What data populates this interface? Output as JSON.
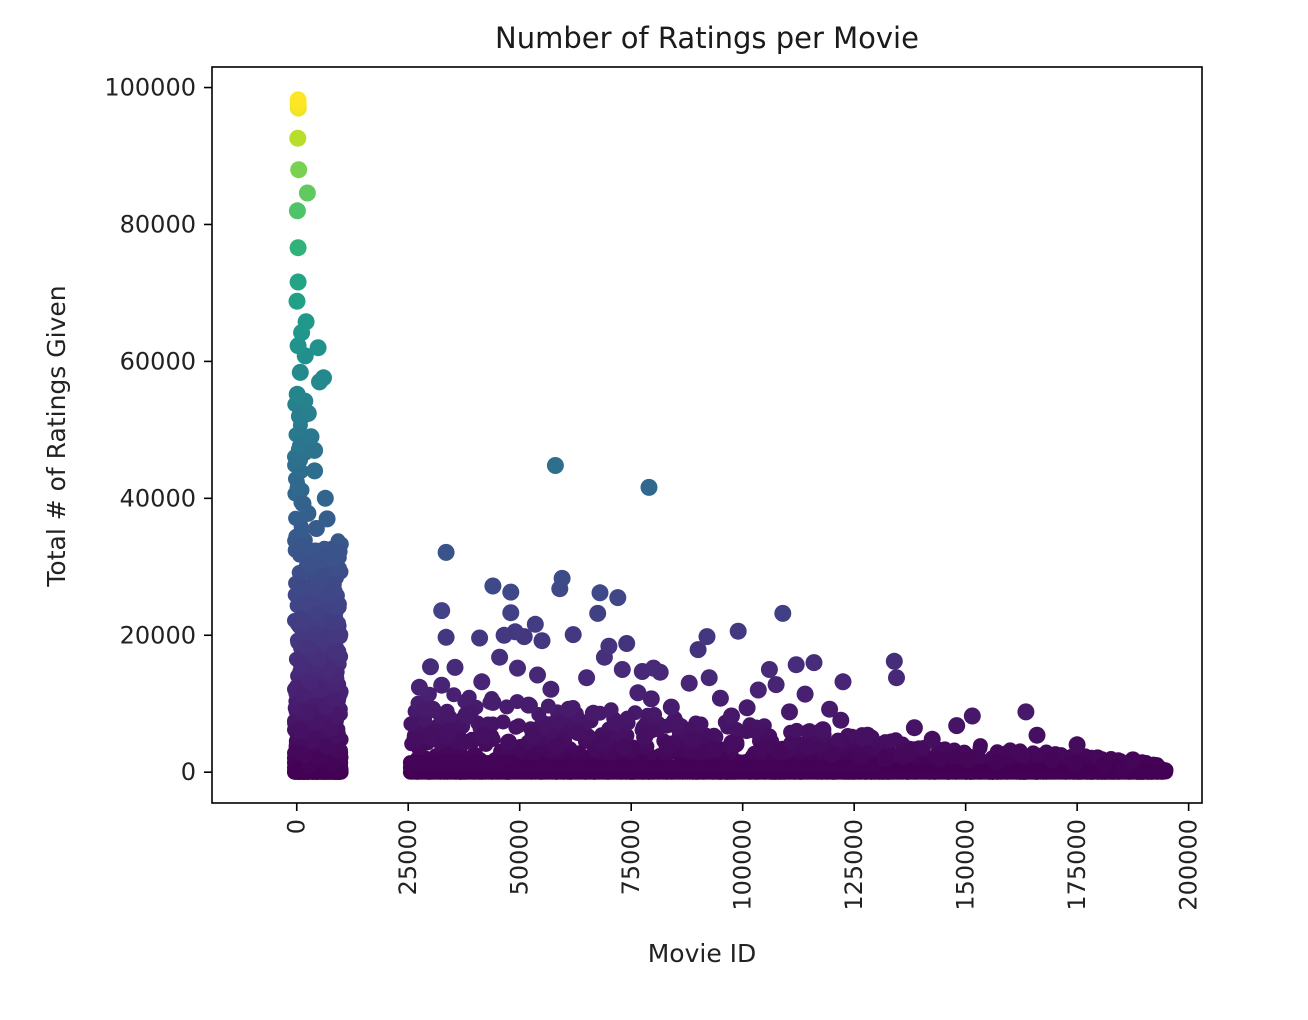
{
  "chart_data": {
    "type": "scatter",
    "title": "Number of Ratings per Movie",
    "xlabel": "Movie ID",
    "ylabel": "Total # of Ratings Given",
    "xlim": [
      -19000,
      203000
    ],
    "ylim": [
      -4500,
      103000
    ],
    "grid": false,
    "legend": "none",
    "colormap": "viridis",
    "color_by": "y",
    "color_range": [
      0,
      98000
    ],
    "x_ticks": [
      0,
      25000,
      50000,
      75000,
      100000,
      125000,
      150000,
      175000,
      200000
    ],
    "x_tick_labels": [
      "0",
      "25000",
      "50000",
      "75000",
      "100000",
      "125000",
      "150000",
      "175000",
      "200000"
    ],
    "y_ticks": [
      0,
      20000,
      40000,
      60000,
      80000,
      100000
    ],
    "y_tick_labels": [
      "0",
      "20000",
      "40000",
      "60000",
      "80000",
      "100000"
    ],
    "series": [
      {
        "values": [
          [
            300,
            98200
          ],
          [
            320,
            97600
          ],
          [
            350,
            97000
          ],
          [
            250,
            92600
          ],
          [
            450,
            88000
          ],
          [
            2400,
            84600
          ],
          [
            150,
            82000
          ],
          [
            300,
            76600
          ],
          [
            300,
            71600
          ],
          [
            50,
            68800
          ],
          [
            2100,
            65800
          ],
          [
            1100,
            64200
          ],
          [
            4800,
            62000
          ],
          [
            300,
            62300
          ],
          [
            1900,
            60800
          ],
          [
            6000,
            57600
          ],
          [
            5100,
            57000
          ],
          [
            800,
            58400
          ],
          [
            100,
            55200
          ],
          [
            1800,
            54200
          ],
          [
            600,
            52000
          ],
          [
            2600,
            52400
          ],
          [
            3200,
            49000
          ],
          [
            800,
            47600
          ],
          [
            4000,
            47000
          ],
          [
            300,
            45900
          ],
          [
            4000,
            44000
          ],
          [
            6400,
            40000
          ],
          [
            300,
            41600
          ],
          [
            1400,
            39200
          ],
          [
            2500,
            37800
          ],
          [
            6800,
            37000
          ],
          [
            4400,
            35600
          ],
          [
            9000,
            32000
          ],
          [
            1000,
            33000
          ],
          [
            8000,
            31200
          ],
          [
            3000,
            30200
          ],
          [
            5800,
            28500
          ],
          [
            1200,
            27200
          ],
          [
            7400,
            26000
          ],
          [
            2000,
            24600
          ],
          [
            8600,
            24200
          ],
          [
            4200,
            23100
          ],
          [
            8000,
            22000
          ],
          [
            1600,
            21800
          ],
          [
            3800,
            20200
          ],
          [
            8800,
            20000
          ],
          [
            6000,
            19400
          ],
          [
            2500,
            18300
          ],
          [
            8600,
            17600
          ],
          [
            4800,
            16600
          ],
          [
            1000,
            15800
          ],
          [
            7000,
            15000
          ],
          [
            8600,
            14200
          ],
          [
            3000,
            13200
          ],
          [
            8600,
            12800
          ],
          [
            5500,
            12200
          ],
          [
            1500,
            11400
          ],
          [
            8200,
            10800
          ],
          [
            6500,
            9600
          ],
          [
            2200,
            8800
          ],
          [
            8800,
            8400
          ],
          [
            4500,
            7400
          ],
          [
            7500,
            6400
          ],
          [
            1200,
            6000
          ],
          [
            9000,
            5400
          ],
          [
            3500,
            4600
          ],
          [
            6800,
            3800
          ],
          [
            9000,
            3200
          ],
          [
            1800,
            2600
          ],
          [
            5200,
            2000
          ],
          [
            8400,
            1400
          ],
          [
            2800,
            1000
          ],
          [
            6200,
            500
          ],
          [
            9200,
            200
          ],
          [
            600,
            300
          ],
          [
            58000,
            44800
          ],
          [
            79000,
            41600
          ],
          [
            33500,
            32100
          ],
          [
            32500,
            23600
          ],
          [
            33500,
            19700
          ],
          [
            44000,
            27200
          ],
          [
            48000,
            26300
          ],
          [
            59500,
            28300
          ],
          [
            59000,
            26800
          ],
          [
            68000,
            26200
          ],
          [
            72000,
            25500
          ],
          [
            67500,
            23200
          ],
          [
            48000,
            23300
          ],
          [
            53500,
            21600
          ],
          [
            41000,
            19600
          ],
          [
            46500,
            20000
          ],
          [
            49000,
            20500
          ],
          [
            51000,
            19800
          ],
          [
            55000,
            19200
          ],
          [
            62000,
            20100
          ],
          [
            70000,
            18400
          ],
          [
            74000,
            18800
          ],
          [
            92000,
            19800
          ],
          [
            99000,
            20600
          ],
          [
            109000,
            23200
          ],
          [
            45500,
            16800
          ],
          [
            49500,
            15200
          ],
          [
            54000,
            14200
          ],
          [
            69000,
            16800
          ],
          [
            73000,
            15000
          ],
          [
            77500,
            14700
          ],
          [
            80000,
            15200
          ],
          [
            81500,
            14600
          ],
          [
            90000,
            17900
          ],
          [
            92500,
            13800
          ],
          [
            106000,
            15000
          ],
          [
            112000,
            15700
          ],
          [
            116000,
            16000
          ],
          [
            122500,
            13200
          ],
          [
            134000,
            16200
          ],
          [
            134500,
            13800
          ],
          [
            30000,
            15400
          ],
          [
            35500,
            15300
          ],
          [
            27500,
            12400
          ],
          [
            32500,
            12700
          ],
          [
            41500,
            13200
          ],
          [
            57000,
            12100
          ],
          [
            65000,
            13800
          ],
          [
            76500,
            11600
          ],
          [
            79500,
            10700
          ],
          [
            88000,
            13000
          ],
          [
            95000,
            10800
          ],
          [
            101000,
            9400
          ],
          [
            103500,
            12000
          ],
          [
            107500,
            12800
          ],
          [
            114000,
            11400
          ],
          [
            119500,
            9200
          ],
          [
            122000,
            7600
          ],
          [
            128000,
            5400
          ],
          [
            138500,
            6500
          ],
          [
            142500,
            4800
          ],
          [
            148000,
            6800
          ],
          [
            151500,
            8200
          ],
          [
            163500,
            8800
          ],
          [
            166000,
            5400
          ],
          [
            175000,
            4000
          ],
          [
            187500,
            1800
          ],
          [
            30500,
            9200
          ],
          [
            38000,
            8400
          ],
          [
            44000,
            10200
          ],
          [
            52000,
            9800
          ],
          [
            61000,
            9200
          ],
          [
            66500,
            8600
          ],
          [
            71500,
            7200
          ],
          [
            84000,
            9500
          ],
          [
            97500,
            8200
          ],
          [
            110500,
            8800
          ],
          [
            118000,
            6200
          ],
          [
            26500,
            4800
          ],
          [
            29500,
            5300
          ],
          [
            34000,
            6000
          ],
          [
            37500,
            4400
          ],
          [
            42000,
            5400
          ],
          [
            47500,
            4400
          ],
          [
            53000,
            5400
          ],
          [
            58500,
            3800
          ],
          [
            63000,
            5800
          ],
          [
            68500,
            4300
          ],
          [
            73500,
            3600
          ],
          [
            78000,
            5100
          ],
          [
            83000,
            3900
          ],
          [
            88500,
            4700
          ],
          [
            93500,
            3300
          ],
          [
            98500,
            4100
          ],
          [
            104000,
            3200
          ],
          [
            108500,
            2900
          ],
          [
            114500,
            3700
          ],
          [
            120000,
            2600
          ],
          [
            126500,
            2300
          ],
          [
            132000,
            2000
          ],
          [
            137500,
            2700
          ],
          [
            144000,
            1900
          ],
          [
            150500,
            1700
          ],
          [
            157000,
            1500
          ],
          [
            162500,
            2500
          ],
          [
            169500,
            1800
          ],
          [
            174500,
            1200
          ],
          [
            181000,
            900
          ],
          [
            185500,
            600
          ],
          [
            190000,
            500
          ],
          [
            193500,
            300
          ]
        ]
      }
    ]
  }
}
